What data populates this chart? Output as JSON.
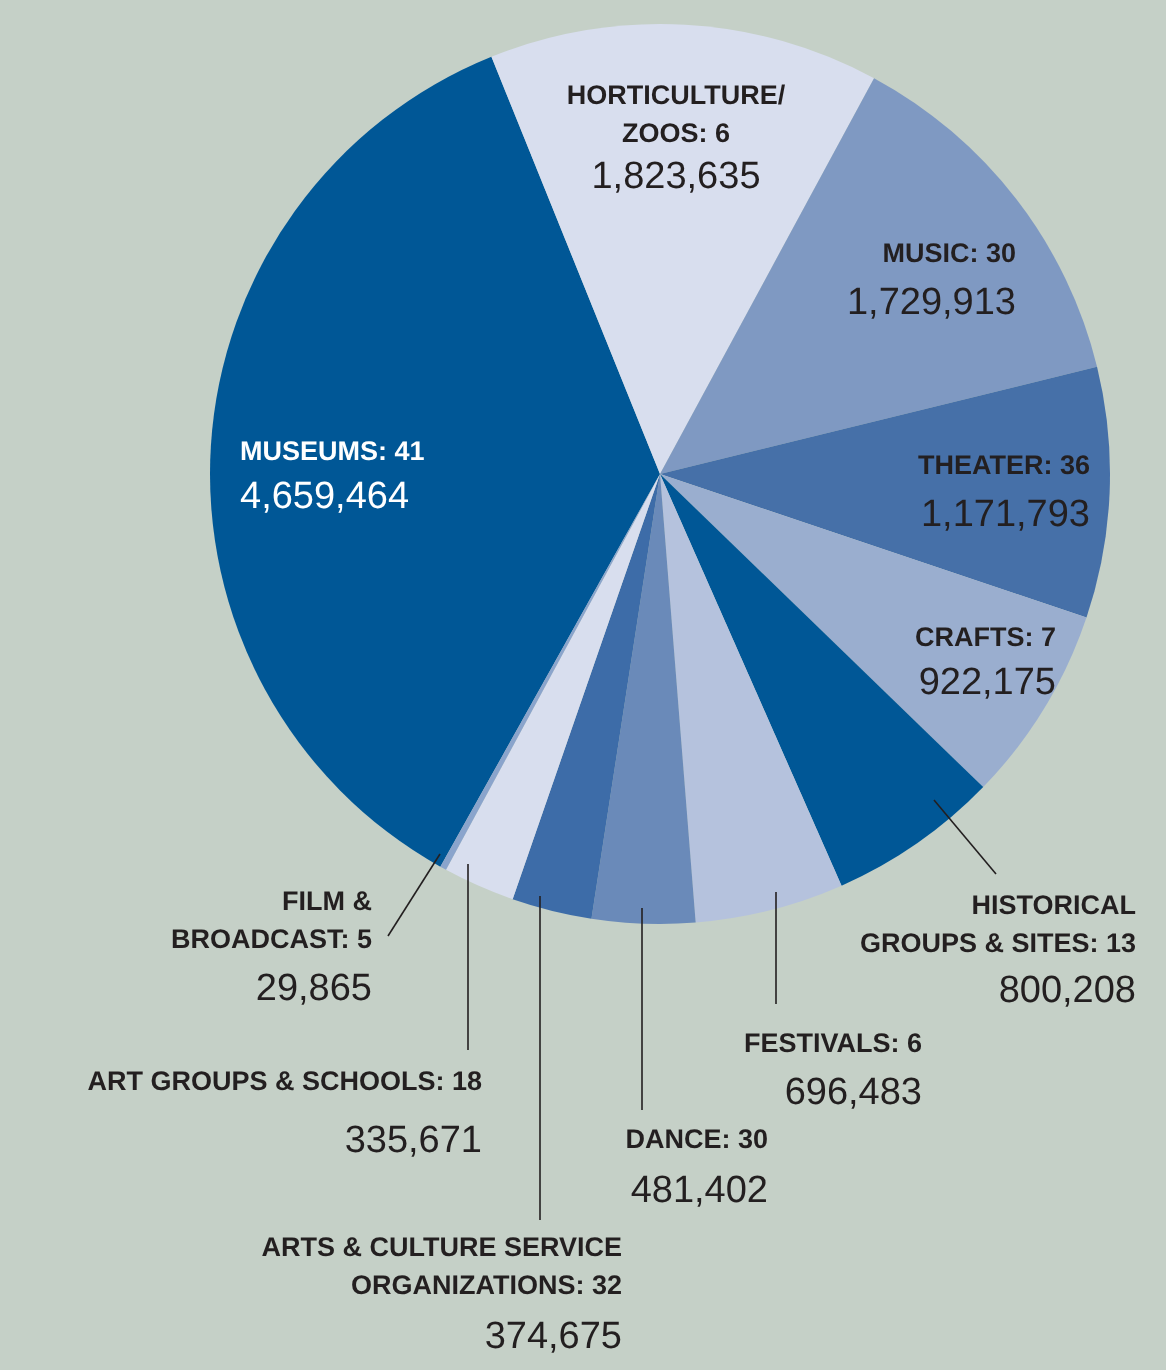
{
  "chart_data": {
    "type": "pie",
    "categories": [
      "MUSEUMS: 41",
      "HORTICULTURE/ ZOOS: 6",
      "MUSIC: 30",
      "THEATER: 36",
      "CRAFTS: 7",
      "HISTORICAL GROUPS & SITES: 13",
      "FESTIVALS: 6",
      "DANCE: 30",
      "ARTS & CULTURE SERVICE ORGANIZATIONS: 32",
      "ART GROUPS & SCHOOLS: 18",
      "FILM & BROADCAST: 5"
    ],
    "values": [
      4659464,
      1823635,
      1729913,
      1171793,
      922175,
      800208,
      696483,
      481402,
      374675,
      335671,
      29865
    ],
    "colors": [
      "#005796",
      "#d8deee",
      "#7f99c2",
      "#4670a8",
      "#9aaecf",
      "#005796",
      "#b5c2dd",
      "#6a8ab9",
      "#3d6ca8",
      "#d8deee",
      "#8aa4cc"
    ],
    "value_labels": [
      "4,659,464",
      "1,823,635",
      "1,729,913",
      "1,171,793",
      "922,175",
      "800,208",
      "696,483",
      "481,402",
      "374,675",
      "335,671",
      "29,865"
    ]
  }
}
